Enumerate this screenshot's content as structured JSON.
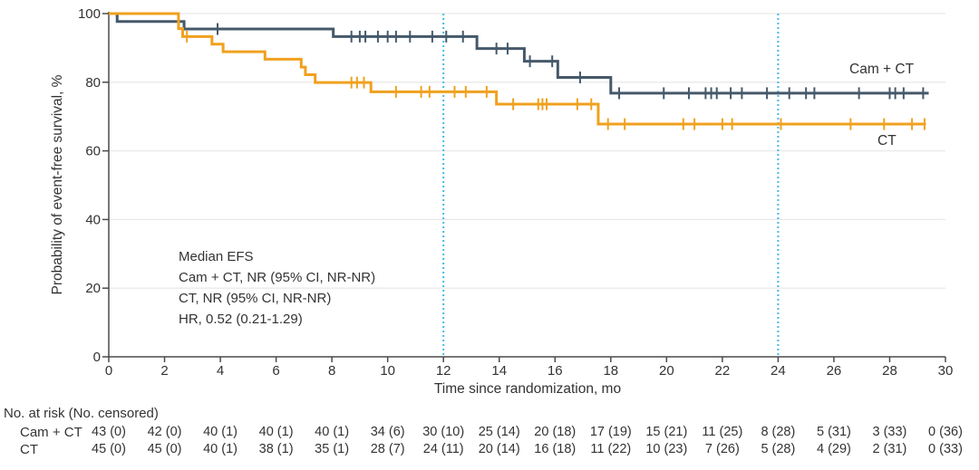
{
  "chart_data": {
    "type": "line",
    "subtype": "kaplan-meier-step",
    "title": "",
    "xlabel": "Time since randomization, mo",
    "ylabel": "Probability of event-free survival, %",
    "xlim": [
      0,
      30
    ],
    "ylim": [
      0,
      100
    ],
    "xticks": [
      0,
      2,
      4,
      6,
      8,
      10,
      12,
      14,
      16,
      18,
      20,
      22,
      24,
      26,
      28,
      30
    ],
    "yticks": [
      0,
      20,
      40,
      60,
      80,
      100
    ],
    "grid": true,
    "gridline_color": "#e9e9e9",
    "axis_color": "#4a4a4a",
    "reference_lines_x": [
      12,
      24
    ],
    "reference_line_color": "#45b8e8",
    "legend_position": "end-of-line",
    "series": [
      {
        "name": "Cam + CT",
        "color": "#45596a",
        "steps": [
          [
            0,
            100
          ],
          [
            0.3,
            97.7
          ],
          [
            2.7,
            95.5
          ],
          [
            8.05,
            93.3
          ],
          [
            13.2,
            89.8
          ],
          [
            14.9,
            86.1
          ],
          [
            16.1,
            81.4
          ],
          [
            18.0,
            76.8
          ],
          [
            29.4,
            76.8
          ]
        ],
        "censor_times": [
          3.9,
          8.7,
          9.0,
          9.2,
          9.65,
          10.0,
          10.3,
          10.8,
          11.6,
          12.1,
          12.7,
          13.9,
          14.3,
          15.1,
          15.9,
          16.9,
          18.3,
          19.9,
          20.8,
          21.4,
          21.6,
          21.8,
          22.3,
          22.7,
          23.6,
          24.4,
          25.0,
          25.3,
          26.9,
          28.0,
          28.2,
          28.5,
          29.2
        ]
      },
      {
        "name": "CT",
        "color": "#f0a11e",
        "steps": [
          [
            0,
            100
          ],
          [
            2.5,
            95.6
          ],
          [
            2.65,
            93.3
          ],
          [
            3.7,
            91.1
          ],
          [
            4.1,
            88.9
          ],
          [
            5.6,
            86.7
          ],
          [
            6.9,
            84.4
          ],
          [
            7.05,
            82.2
          ],
          [
            7.4,
            79.9
          ],
          [
            9.4,
            77.2
          ],
          [
            13.9,
            73.6
          ],
          [
            17.55,
            67.8
          ],
          [
            29.3,
            67.8
          ]
        ],
        "censor_times": [
          2.8,
          8.7,
          8.9,
          9.15,
          10.3,
          11.2,
          11.5,
          12.4,
          12.8,
          13.55,
          14.5,
          15.4,
          15.55,
          15.7,
          16.8,
          17.3,
          17.9,
          18.5,
          20.6,
          21.0,
          22.0,
          22.35,
          24.1,
          26.6,
          27.8,
          28.8,
          29.25
        ]
      }
    ]
  },
  "annotation": {
    "lines": [
      "Median EFS",
      "Cam + CT, NR (95% CI, NR-NR)",
      "CT, NR (95% CI, NR-NR)",
      "HR, 0.52 (0.21-1.29)"
    ]
  },
  "risk_table": {
    "header": "No. at risk (No. censored)",
    "timepoints": [
      0,
      2,
      4,
      6,
      8,
      10,
      12,
      14,
      16,
      18,
      20,
      22,
      24,
      26,
      28,
      30
    ],
    "rows": [
      {
        "label": "Cam + CT",
        "values": [
          "43 (0)",
          "42 (0)",
          "40 (1)",
          "40 (1)",
          "40 (1)",
          "34 (6)",
          "30 (10)",
          "25 (14)",
          "20 (18)",
          "17 (19)",
          "15 (21)",
          "11 (25)",
          "8 (28)",
          "5 (31)",
          "3 (33)",
          "0 (36)"
        ]
      },
      {
        "label": "CT",
        "values": [
          "45 (0)",
          "45 (0)",
          "40 (1)",
          "38 (1)",
          "35 (1)",
          "28 (7)",
          "24 (11)",
          "20 (14)",
          "16 (18)",
          "11 (22)",
          "10 (23)",
          "7 (26)",
          "5 (28)",
          "4 (29)",
          "2 (31)",
          "0 (33)"
        ]
      }
    ]
  }
}
